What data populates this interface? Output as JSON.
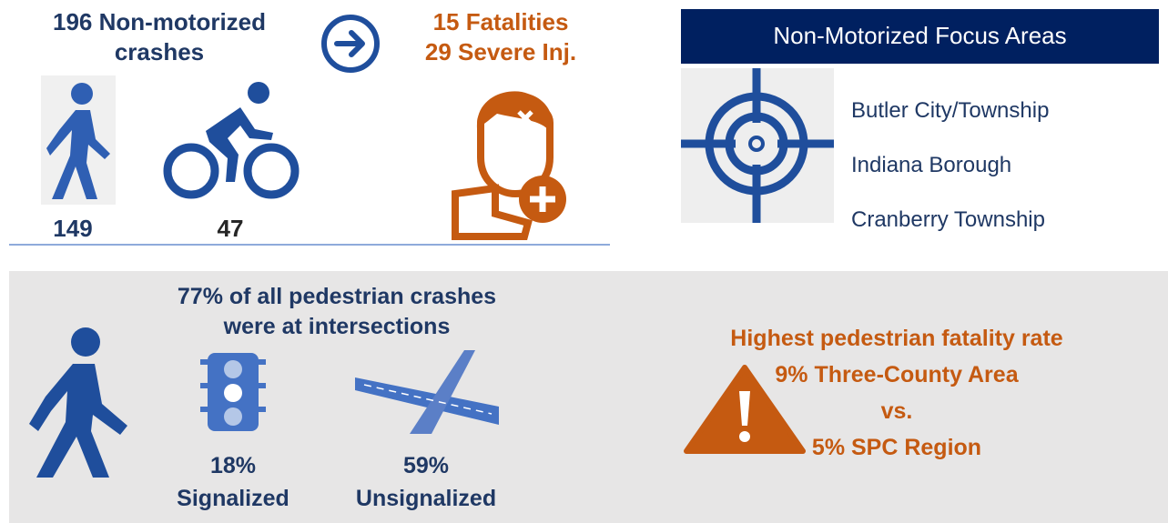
{
  "crashes": {
    "title": "196 Non-motorized crashes",
    "outcomes": [
      "15 Fatalities",
      "29 Severe Inj."
    ],
    "pedestrian": "149",
    "bicycle": "47"
  },
  "focus_areas": {
    "title": "Non-Motorized Focus Areas",
    "items": [
      "Butler City/Township",
      "Indiana Borough",
      "Cranberry Township"
    ]
  },
  "intersections": {
    "headline": "77% of all pedestrian crashes were at intersections",
    "signalized": {
      "share": "18%",
      "label": "Signalized"
    },
    "unsignalized": {
      "share": "59%",
      "label": "Unsignalized"
    }
  },
  "fatality_rate": {
    "lines": [
      "Highest pedestrian fatality rate",
      "9% Three-County Area",
      "vs.",
      "5% SPC Region"
    ]
  }
}
